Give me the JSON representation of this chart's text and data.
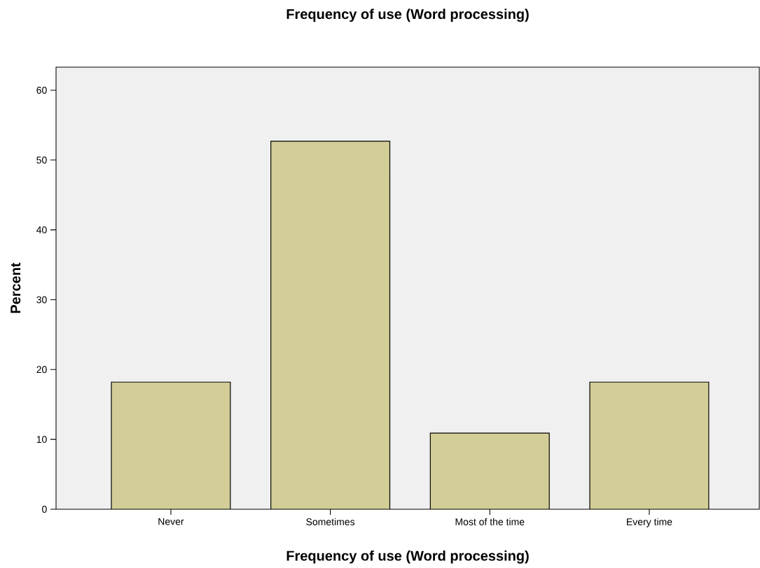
{
  "chart_data": {
    "type": "bar",
    "title": "Frequency of use (Word processing)",
    "xlabel": "Frequency of use (Word processing)",
    "ylabel": "Percent",
    "categories": [
      "Never",
      "Sometimes",
      "Most of the time",
      "Every time"
    ],
    "values": [
      18.2,
      52.7,
      10.9,
      18.2
    ],
    "color": "#d3ce97",
    "ylim": [
      0,
      63.3
    ],
    "yticks": [
      0,
      10,
      20,
      30,
      40,
      50,
      60
    ],
    "grid": false
  }
}
